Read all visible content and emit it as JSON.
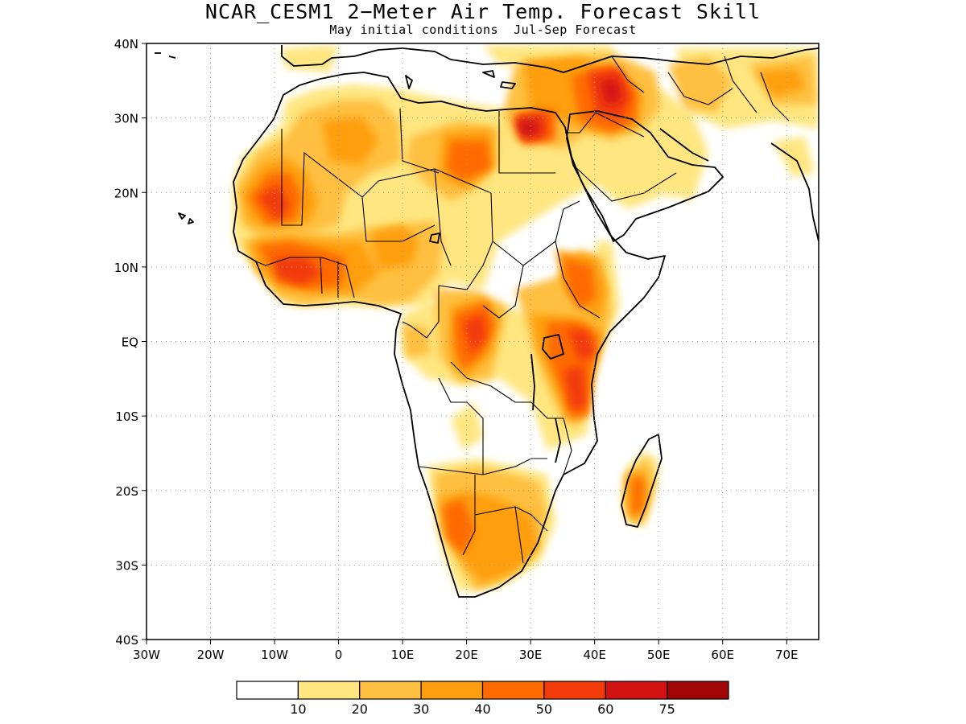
{
  "title": "NCAR_CESM1 2−Meter Air Temp. Forecast Skill",
  "subtitle": "May initial conditions  Jul-Sep Forecast",
  "map": {
    "lon_ticks": [
      "30W",
      "20W",
      "10W",
      "0",
      "10E",
      "20E",
      "30E",
      "40E",
      "50E",
      "60E",
      "70E"
    ],
    "lat_ticks": [
      "40N",
      "30N",
      "20N",
      "10N",
      "EQ",
      "10S",
      "20S",
      "30S",
      "40S"
    ],
    "lon_range": [
      -30,
      75
    ],
    "lat_range": [
      -40,
      40
    ],
    "grid": "dotted",
    "land_outline_color": "#000000"
  },
  "colorbar": {
    "labels": [
      "10",
      "20",
      "30",
      "40",
      "50",
      "60",
      "75"
    ],
    "colors": [
      "#ffffff",
      "#ffe680",
      "#ffbf40",
      "#ff9f0f",
      "#ff6a00",
      "#f23a0a",
      "#d31313",
      "#a00505"
    ]
  }
}
